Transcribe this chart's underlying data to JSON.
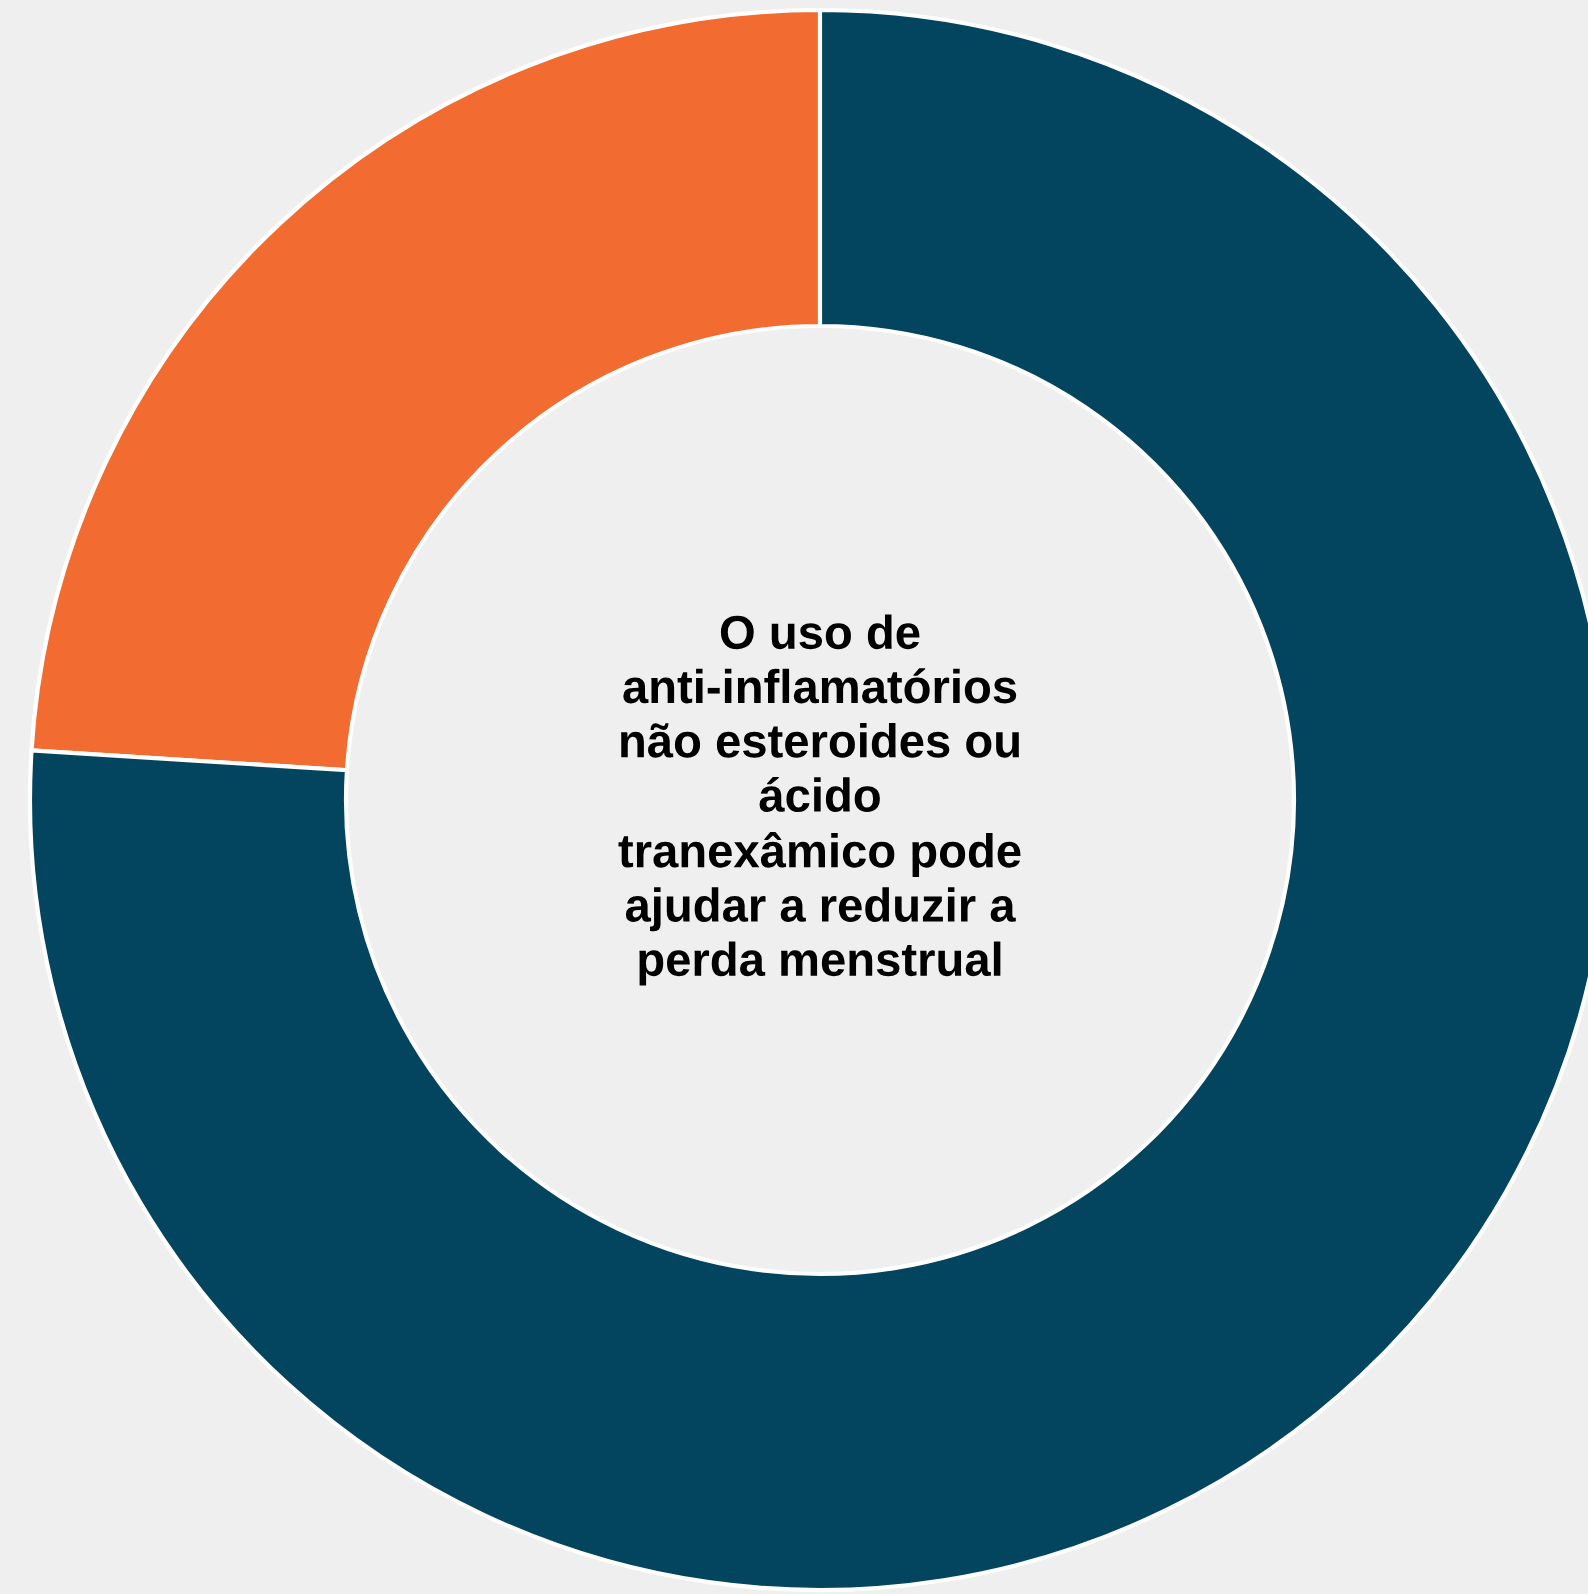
{
  "chart_data": {
    "type": "donut",
    "categories": [
      null,
      null
    ],
    "values": [
      24,
      76
    ],
    "colors": [
      "#f26b30",
      "#03445e"
    ],
    "annotations": [
      "O uso de\nanti-inflamatórios\nnão esteroides ou\nácido\ntranexâmico pode\najudar a reduzir a\nperda menstrual"
    ],
    "legend": false
  }
}
